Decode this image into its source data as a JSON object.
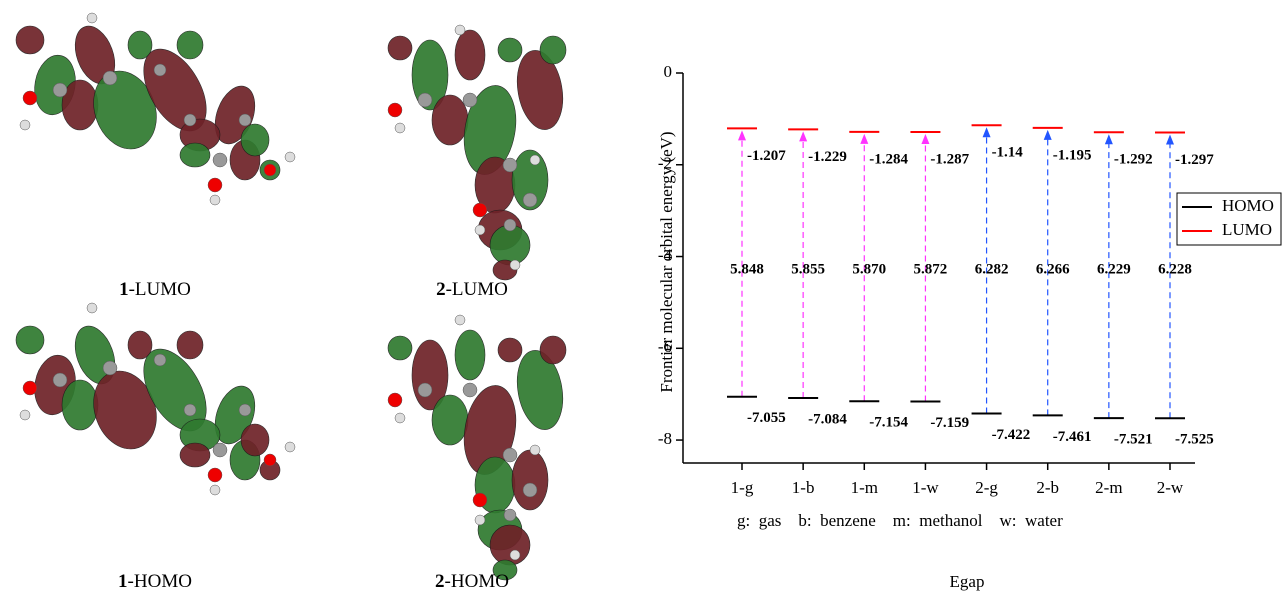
{
  "captions": [
    {
      "number": "1",
      "label": "-LUMO"
    },
    {
      "number": "2",
      "label": "-LUMO"
    },
    {
      "number": "1",
      "label": "-HOMO"
    },
    {
      "number": "2",
      "label": "-HOMO"
    }
  ],
  "chart_data": {
    "type": "gap",
    "y_label": "Frontier molecular orbital energy (eV)",
    "x_label": "Egap",
    "annotation": "g:  gas    b:  benzene    m:  methanol    w:  water",
    "categories": [
      "1-g",
      "1-b",
      "1-m",
      "1-w",
      "2-g",
      "2-b",
      "2-m",
      "2-w"
    ],
    "series": [
      {
        "name": "HOMO",
        "color": "#000000",
        "values": [
          -7.055,
          -7.084,
          -7.154,
          -7.159,
          -7.422,
          -7.461,
          -7.521,
          -7.525
        ]
      },
      {
        "name": "LUMO",
        "color": "#ff0000",
        "values": [
          -1.207,
          -1.229,
          -1.284,
          -1.287,
          -1.14,
          -1.195,
          -1.292,
          -1.297
        ]
      }
    ],
    "gap": {
      "values": [
        5.848,
        5.855,
        5.87,
        5.872,
        6.282,
        6.266,
        6.229,
        6.228
      ],
      "value_labels": [
        "5.848",
        "5.855",
        "5.870",
        "5.872",
        "6.282",
        "6.266",
        "6.229",
        "6.228"
      ],
      "colors": [
        "#ff33ff",
        "#ff33ff",
        "#ff33ff",
        "#ff33ff",
        "#2255ff",
        "#2255ff",
        "#2255ff",
        "#2255ff"
      ]
    },
    "ylim": [
      -8.5,
      0
    ],
    "yticks": [
      0,
      -2,
      -4,
      -6,
      -8
    ],
    "legend": "right"
  }
}
